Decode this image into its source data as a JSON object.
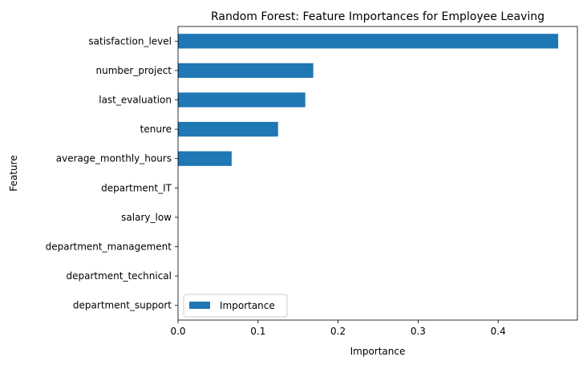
{
  "chart_data": {
    "type": "bar",
    "orientation": "horizontal",
    "title": "Random Forest: Feature Importances for Employee Leaving",
    "xlabel": "Importance",
    "ylabel": "Feature",
    "categories": [
      "satisfaction_level",
      "number_project",
      "last_evaluation",
      "tenure",
      "average_monthly_hours",
      "department_IT",
      "salary_low",
      "department_management",
      "department_technical",
      "department_support"
    ],
    "series": [
      {
        "name": "Importance",
        "values": [
          0.475,
          0.169,
          0.159,
          0.125,
          0.067,
          0.0,
          0.0,
          0.0,
          0.0,
          0.0
        ]
      }
    ],
    "xlim": [
      0,
      0.499
    ],
    "xticks": [
      0,
      0.1,
      0.2,
      0.3,
      0.4
    ],
    "xtick_labels": [
      "0.0",
      "0.1",
      "0.2",
      "0.3",
      "0.4"
    ],
    "legend": {
      "position": "lower-left",
      "entries": [
        "Importance"
      ]
    },
    "grid": false,
    "colors": {
      "bar": "#1f77b4",
      "axes": "#000000",
      "background": "#ffffff"
    }
  }
}
